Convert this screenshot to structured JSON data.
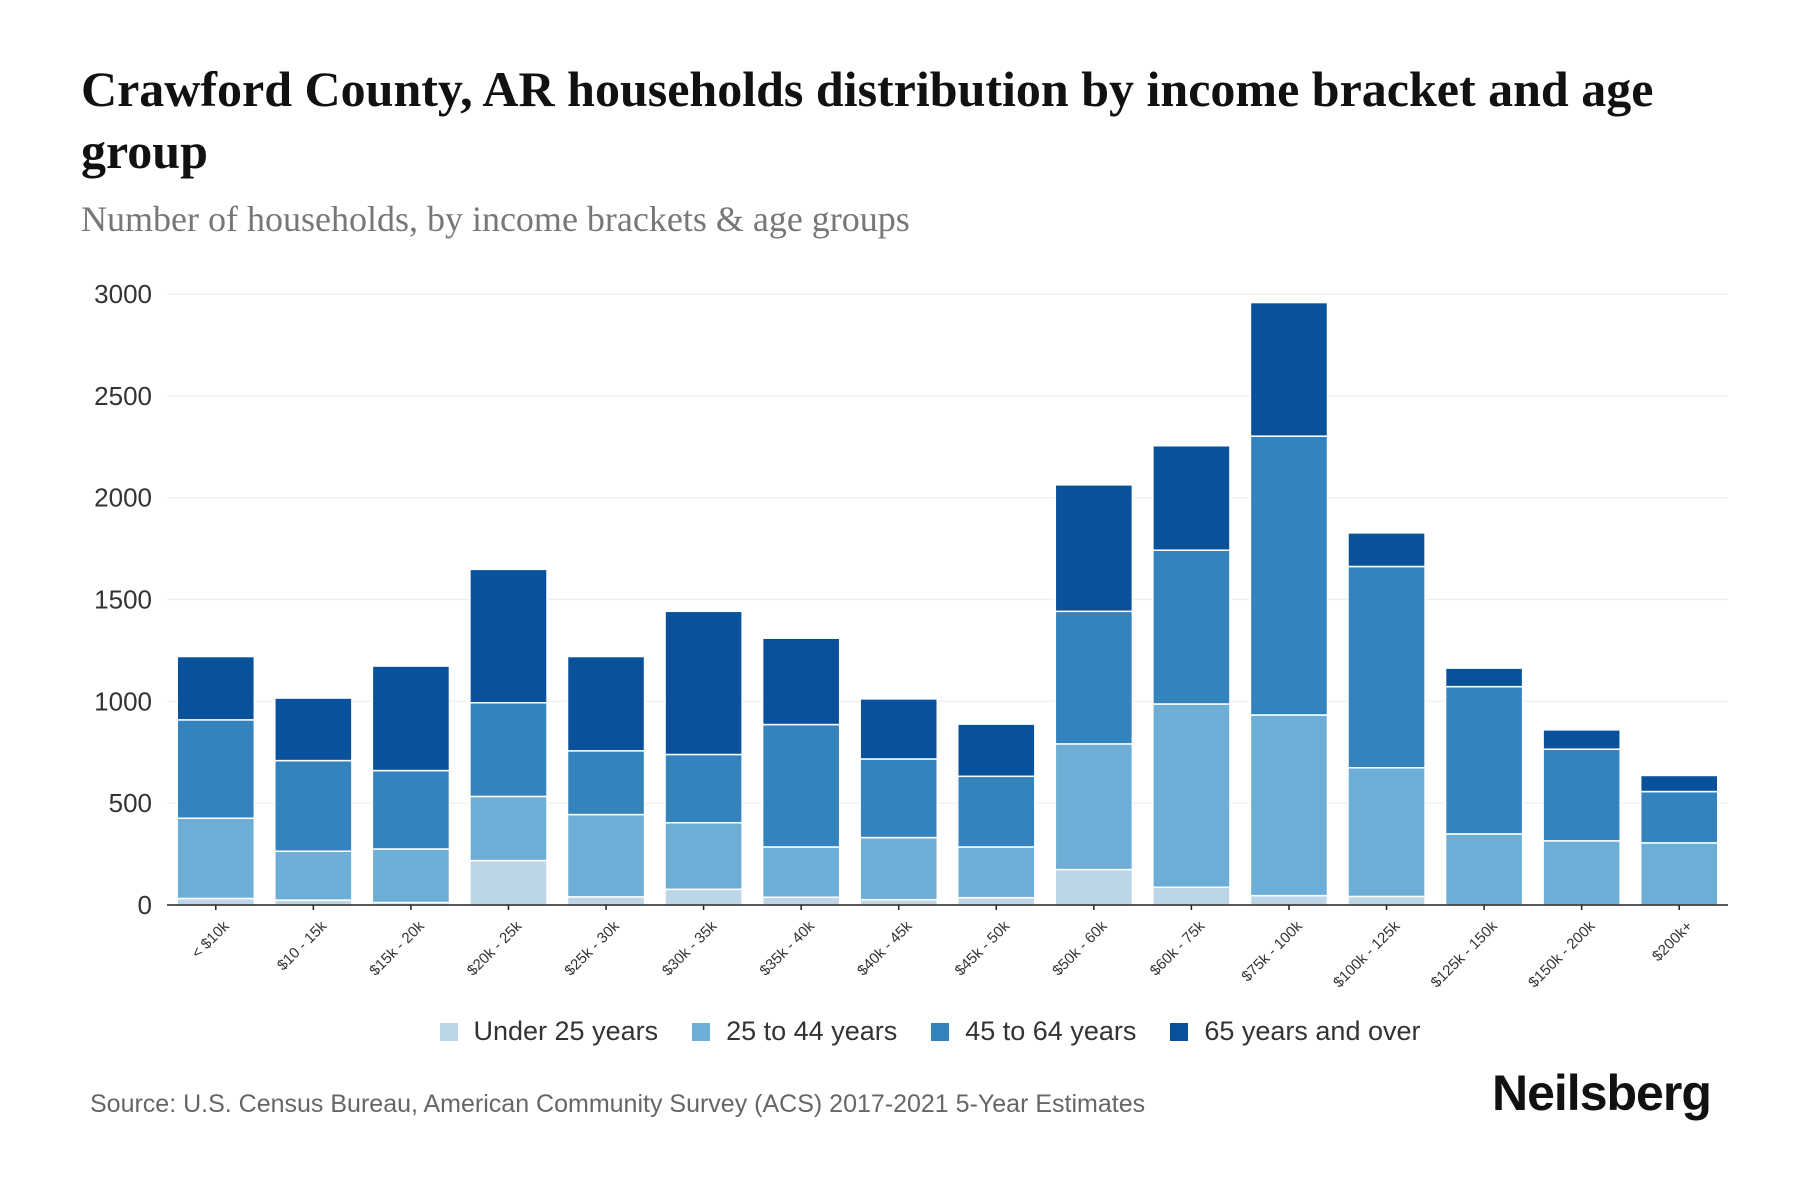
{
  "title": "Crawford County, AR households distribution by income bracket and age group",
  "subtitle": "Number of households, by income brackets & age groups",
  "source": "Source: U.S. Census Bureau, American Community Survey (ACS) 2017-2021 5-Year Estimates",
  "logo": "Neilsberg",
  "chart_data": {
    "type": "bar",
    "stacked": true,
    "title": "Crawford County, AR households distribution by income bracket and age group",
    "xlabel": "",
    "ylabel": "",
    "ylim": [
      0,
      3000
    ],
    "yticks": [
      0,
      500,
      1000,
      1500,
      2000,
      2500,
      3000
    ],
    "grid": true,
    "legend_position": "bottom",
    "categories": [
      "< $10k",
      "$10 - 15k",
      "$15k - 20k",
      "$20k - 25k",
      "$25k - 30k",
      "$30k - 35k",
      "$35k - 40k",
      "$40k - 45k",
      "$45k - 50k",
      "$50k - 60k",
      "$60k - 75k",
      "$75k - 100k",
      "$100k - 125k",
      "$125k - 150k",
      "$150k - 200k",
      "$200k+"
    ],
    "series": [
      {
        "name": "Under 25 years",
        "color": "#bcd6e8",
        "values": [
          32,
          24,
          12,
          218,
          40,
          77,
          38,
          26,
          36,
          174,
          87,
          46,
          42,
          0,
          0,
          0
        ]
      },
      {
        "name": "25 to 44 years",
        "color": "#6daed6",
        "values": [
          394,
          240,
          263,
          315,
          404,
          327,
          247,
          305,
          249,
          617,
          900,
          887,
          632,
          349,
          315,
          305
        ]
      },
      {
        "name": "45 to 64 years",
        "color": "#3483bd",
        "values": [
          483,
          445,
          385,
          460,
          313,
          335,
          601,
          386,
          347,
          651,
          755,
          1369,
          988,
          723,
          450,
          252
        ]
      },
      {
        "name": "65 years and over",
        "color": "#0a519c",
        "values": [
          311,
          307,
          513,
          655,
          463,
          703,
          424,
          295,
          256,
          621,
          513,
          656,
          165,
          91,
          95,
          79
        ]
      }
    ]
  }
}
